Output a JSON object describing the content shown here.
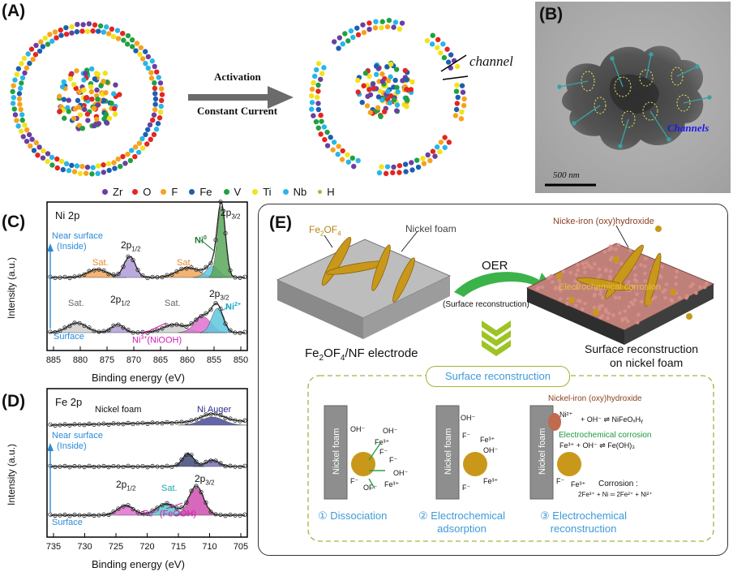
{
  "panels": {
    "A": {
      "label": "(A)",
      "arrow_top": "Activation",
      "arrow_bottom": "Constant Current",
      "channel": "channel",
      "legend": [
        {
          "name": "Zr",
          "color": "#6a3fa0"
        },
        {
          "name": "O",
          "color": "#e3261f"
        },
        {
          "name": "F",
          "color": "#f6a21c"
        },
        {
          "name": "Fe",
          "color": "#1c5fb0"
        },
        {
          "name": "V",
          "color": "#21a041"
        },
        {
          "name": "Ti",
          "color": "#f2e21a"
        },
        {
          "name": "Nb",
          "color": "#27b6e6"
        },
        {
          "name": "H",
          "color": "#8bc34a"
        }
      ]
    },
    "B": {
      "label": "(B)",
      "channels": "Channels",
      "scale": "500 nm"
    },
    "C": {
      "label": "(C)",
      "title": "Ni 2p",
      "near_surface": "Near surface",
      "inside": "(Inside)",
      "surface": "Surface",
      "ylabel": "Intensity (a.u.)",
      "xlabel": "Binding energy (eV)",
      "ticks": [
        "885",
        "880",
        "875",
        "870",
        "865",
        "860",
        "855",
        "850"
      ],
      "top_peaks": {
        "p12": "2p",
        "p12sub": "1/2",
        "p32": "2p",
        "p32sub": "3/2",
        "sat1": "Sat.",
        "sat2": "Sat.",
        "ni0": "Ni",
        "ni0sup": "0"
      },
      "bottom_peaks": {
        "p12": "2p",
        "p12sub": "1/2",
        "p32": "2p",
        "p32sub": "3/2",
        "sat1": "Sat.",
        "sat2": "Sat.",
        "ni2": "Ni",
        "ni2sup": "2+",
        "ni3": "Ni",
        "ni3sup": "3+",
        "ni3rest": "(NiOOH)"
      }
    },
    "D": {
      "label": "(D)",
      "title": "Fe 2p",
      "nickel_foam": "Nickel foam",
      "ni_auger": "Ni Auger",
      "near_surface": "Near surface",
      "inside": "(Inside)",
      "surface": "Surface",
      "ylabel": "Intensity (a.u.)",
      "xlabel": "Binding energy (eV)",
      "ticks": [
        "735",
        "730",
        "725",
        "720",
        "715",
        "710",
        "705"
      ],
      "peaks": {
        "p12": "2p",
        "p12sub": "1/2",
        "sat": "Sat.",
        "p32": "2p",
        "p32sub": "3/2",
        "fe3": "Fe",
        "fe3sup": "3+",
        "fe3rest": "(FeOOH)"
      }
    },
    "E": {
      "label": "(E)",
      "fe2of4": "Fe",
      "fe2of4_a": "2",
      "fe2of4_b": "OF",
      "fe2of4_c": "4",
      "nickel_foam": "Nickel foam",
      "oer": "OER",
      "surface_recon_paren": "(Surface reconstruction)",
      "electrode_a": "Fe",
      "electrode_b": "2",
      "electrode_c": "OF",
      "electrode_d": "4",
      "electrode_e": "/NF electrode",
      "oxyhydroxide": "Nicke-iron (oxy)hydroxide",
      "electrochem_corrosion": "Electrochemical corrosion",
      "surface_recon_line1": "Surface reconstruction",
      "surface_recon_line2": "on nickel foam",
      "box_title": "Surface reconstruction",
      "steps": [
        {
          "num": "①",
          "title": "Dissociation"
        },
        {
          "num": "②",
          "title": "Electrochemical",
          "title2": "adsorption"
        },
        {
          "num": "③",
          "title": "Electrochemical",
          "title2": "reconstruction"
        }
      ],
      "foam_label": "Nickel foam",
      "step3_oxy": "Nickel-iron (oxy)hydroxide",
      "step3_corr": "Electrochemical corrosion",
      "eq1": "+ OH⁻ ⇌ NiFeOₓHᵧ",
      "eq2": "Fe³⁺ + OH⁻ ⇌ Fe(OH)₃",
      "corrosion_label": "Corrosion :",
      "corrosion_eq": "2Fe³⁺ + Ni ═ 2Fe²⁺ + Ni²⁺",
      "ions": {
        "oh": "OH⁻",
        "f": "F⁻",
        "fe3": "Fe³⁺",
        "ni2": "Ni²⁺",
        "fe3p": "Fe³⁺",
        "of": "OF⁻"
      }
    }
  }
}
